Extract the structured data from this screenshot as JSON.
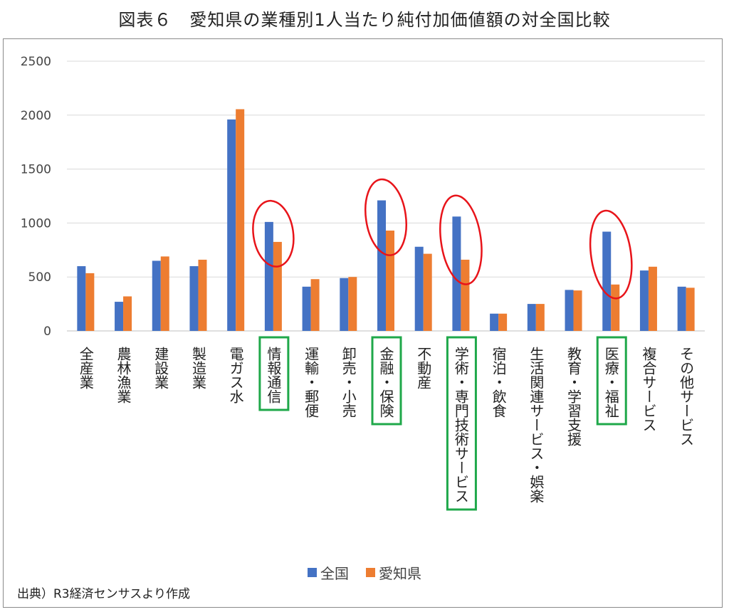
{
  "figure": {
    "title": "図表６　愛知県の業種別1人当たり純付加価値額の対全国比較",
    "source": "出典）R3経済センサスより作成"
  },
  "colors": {
    "national": "#4472C4",
    "aichi": "#ED7D31",
    "grid": "#d9d9d9",
    "highlight_ellipse": "#e8141a",
    "highlight_box": "#1fa84a"
  },
  "chart_data": {
    "type": "bar",
    "categories": [
      "全産業",
      "農林漁業",
      "建設業",
      "製造業",
      "電ガス水",
      "情報通信",
      "運輸・郵便",
      "卸売・小売",
      "金融・保険",
      "不動産",
      "学術・専門技術サービス",
      "宿泊・飲食",
      "生活関連サービス・娯楽",
      "教育・学習支援",
      "医療・福祉",
      "複合サービス",
      "その他サービス"
    ],
    "series": [
      {
        "name": "全国",
        "values": [
          600,
          270,
          650,
          600,
          1960,
          1010,
          410,
          490,
          1210,
          780,
          1060,
          160,
          250,
          380,
          920,
          560,
          410
        ]
      },
      {
        "name": "愛知県",
        "values": [
          535,
          320,
          690,
          660,
          2055,
          825,
          480,
          500,
          930,
          715,
          660,
          160,
          250,
          375,
          430,
          595,
          400
        ]
      }
    ],
    "yticks": [
      0,
      500,
      1000,
      1500,
      2000,
      2500
    ],
    "ylim": [
      0,
      2500
    ],
    "grid": true,
    "legend_position": "bottom",
    "highlighted_categories": [
      "情報通信",
      "金融・保険",
      "学術・専門技術サービス",
      "医療・福祉"
    ]
  }
}
